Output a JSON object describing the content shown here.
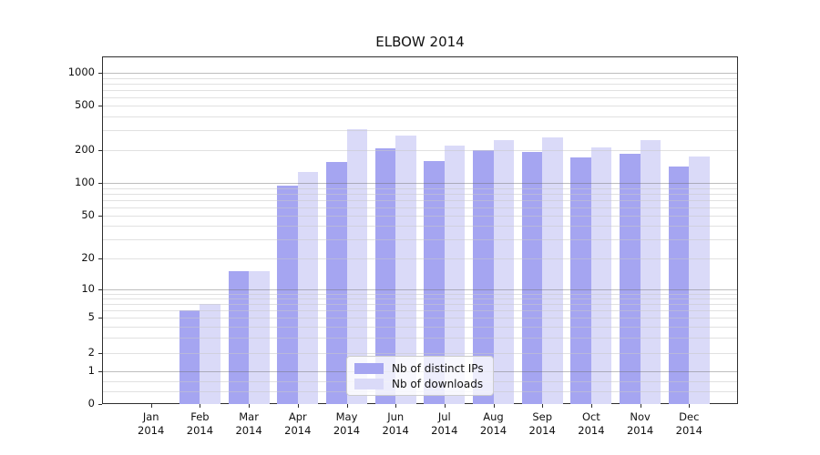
{
  "chart_data": {
    "type": "bar",
    "title": "ELBOW 2014",
    "x_categories": [
      "Jan",
      "Feb",
      "Mar",
      "Apr",
      "May",
      "Jun",
      "Jul",
      "Aug",
      "Sep",
      "Oct",
      "Nov",
      "Dec"
    ],
    "x_year": "2014",
    "series": [
      {
        "name": "Nb of distinct IPs",
        "color": "#a5a5f1",
        "values": [
          0,
          6,
          15,
          94,
          155,
          205,
          157,
          200,
          193,
          170,
          183,
          142
        ]
      },
      {
        "name": "Nb of downloads",
        "color": "#dadaf8",
        "values": [
          0,
          7,
          15,
          127,
          308,
          270,
          219,
          243,
          258,
          209,
          244,
          173
        ]
      }
    ],
    "y_axis": {
      "scale": "symlog",
      "ticks": [
        0,
        1,
        2,
        5,
        10,
        20,
        50,
        100,
        200,
        500,
        1000
      ],
      "major_grid_values": [
        1,
        10,
        100,
        1000
      ],
      "minor_grid_values": [
        0.4,
        0.7,
        2,
        3,
        4,
        5,
        6,
        7,
        8,
        9,
        20,
        30,
        40,
        50,
        60,
        70,
        80,
        90,
        200,
        300,
        400,
        500,
        600,
        700,
        800,
        900
      ]
    },
    "grid": true,
    "legend_position": "lower center"
  },
  "colors": {
    "major_grid": "#b5b5b5",
    "minor_grid": "#e6e6e6",
    "spine": "#2e2e2e",
    "text": "#111111"
  }
}
